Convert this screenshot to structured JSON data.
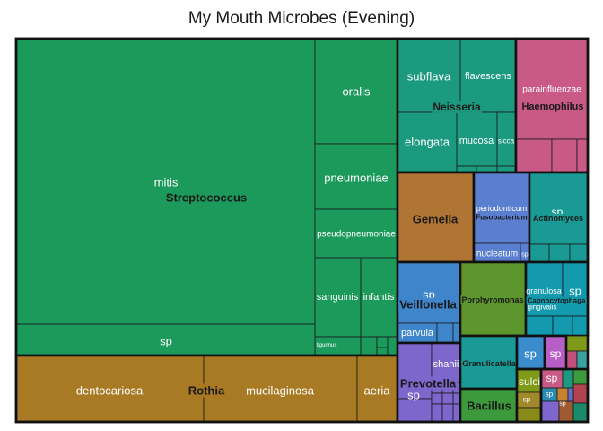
{
  "chart_data": {
    "type": "treemap",
    "title": "My Mouth Microbes (Evening)",
    "colors": {
      "Streptococcus": "#1c9a5c",
      "Rothia": "#a87a24",
      "Neisseria": "#1c9a80",
      "Haemophilus": "#c95a86",
      "Gemella": "#b07433",
      "Fusobacterium": "#5a7fd0",
      "Actinomyces": "#1a9a94",
      "Veillonella": "#3f85cc",
      "Porphyromonas": "#5c962c",
      "Capnocytophaga": "#139aae",
      "Prevotella": "#7d66cc",
      "Granulicatella": "#1a9a96",
      "Bacillus": "#3c9a3c",
      "Misc": "#7f9a18"
    },
    "groups": [
      {
        "genus": "Streptococcus",
        "species": [
          "mitis",
          "oralis",
          "pneumoniae",
          "pseudopneumoniae",
          "sanguinis",
          "infantis",
          "tigurinus",
          "sp"
        ]
      },
      {
        "genus": "Rothia",
        "species": [
          "dentocariosa",
          "mucilaginosa",
          "aeria"
        ]
      },
      {
        "genus": "Neisseria",
        "species": [
          "subflava",
          "flavescens",
          "elongata",
          "mucosa",
          "sicca"
        ]
      },
      {
        "genus": "Haemophilus",
        "species": [
          "parainfluenzae"
        ]
      },
      {
        "genus": "Gemella",
        "species": []
      },
      {
        "genus": "Fusobacterium",
        "species": [
          "periodonticum",
          "nucleatum",
          "sp"
        ]
      },
      {
        "genus": "Actinomyces",
        "species": [
          "sp"
        ]
      },
      {
        "genus": "Veillonella",
        "species": [
          "sp",
          "parvula"
        ]
      },
      {
        "genus": "Porphyromonas",
        "species": []
      },
      {
        "genus": "Capnocytophaga",
        "species": [
          "granulosa",
          "sp",
          "gingivalis"
        ]
      },
      {
        "genus": "Prevotella",
        "species": [
          "shahii",
          "sp"
        ]
      },
      {
        "genus": "Granulicatella",
        "species": []
      },
      {
        "genus": "Bacillus",
        "species": []
      }
    ],
    "misc_labels": [
      "sp",
      "sp",
      "sulci",
      "sp",
      "sp",
      "sp",
      "sp"
    ]
  }
}
